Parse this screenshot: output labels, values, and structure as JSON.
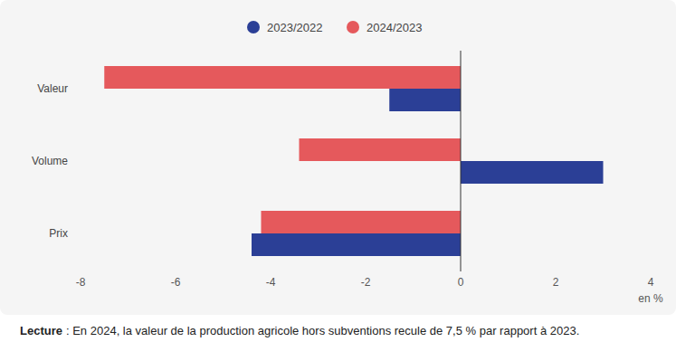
{
  "chart_data": {
    "type": "bar",
    "orientation": "horizontal",
    "categories": [
      "Valeur",
      "Volume",
      "Prix"
    ],
    "series": [
      {
        "name": "2023/2022",
        "color": "#2b3f96",
        "values": [
          -1.5,
          3.0,
          -4.4
        ]
      },
      {
        "name": "2024/2023",
        "color": "#e5595c",
        "values": [
          -7.5,
          -3.4,
          -4.2
        ]
      }
    ],
    "xlim": [
      -8,
      4
    ],
    "xticks": [
      -8,
      -6,
      -4,
      -2,
      0,
      2,
      4
    ],
    "xlabel": "en %",
    "grid": false,
    "legend": "top",
    "annotations": [
      {
        "label": "Lecture",
        "text": ": En 2024, la valeur de la production agricole hors subventions recule de 7,5 % par rapport à 2023."
      }
    ]
  }
}
